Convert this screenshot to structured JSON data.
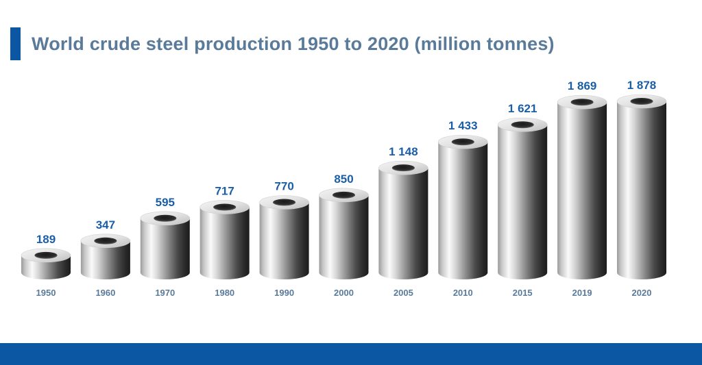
{
  "header": {
    "title": "World crude steel production 1950 to 2020 (million tonnes)"
  },
  "colors": {
    "accent": "#0b57a4",
    "value_label": "#1a5ea8",
    "year_label": "#5a7a9a",
    "title": "#5a7a9a"
  },
  "chart_data": {
    "type": "bar",
    "title": "World crude steel production 1950 to 2020 (million tonnes)",
    "xlabel": "",
    "ylabel": "",
    "categories": [
      "1950",
      "1960",
      "1970",
      "1980",
      "1990",
      "2000",
      "2005",
      "2010",
      "2015",
      "2019",
      "2020"
    ],
    "values": [
      189,
      347,
      595,
      717,
      770,
      850,
      1148,
      1433,
      1621,
      1869,
      1878
    ],
    "value_labels": [
      "189",
      "347",
      "595",
      "717",
      "770",
      "850",
      "1 148",
      "1 433",
      "1 621",
      "1 869",
      "1 878"
    ],
    "ylim": [
      0,
      1878
    ],
    "grid": false,
    "legend": "none",
    "bar_style": "3D steel cylinders (hollow tubes)"
  }
}
